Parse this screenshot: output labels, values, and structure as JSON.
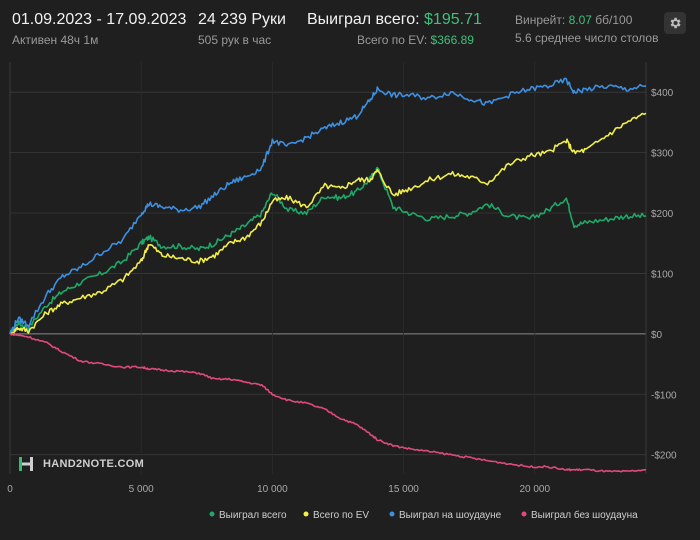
{
  "header": {
    "date_range": "01.09.2023 - 17.09.2023",
    "active": "Активен 48ч 1м",
    "hands": "24 239 Руки",
    "hands_per_hour": "505 рук в час",
    "won_label": "Выиграл всего:",
    "won_value": "$195.71",
    "ev_label": "Всего по EV:",
    "ev_value": "$366.89",
    "winrate_label": "Винрейт:",
    "winrate_value": "8.07",
    "winrate_unit": "бб/100",
    "tables": "5.6 среднее число столов",
    "settings_icon": "gear-icon"
  },
  "watermark": {
    "text": "HAND2NOTE.COM",
    "icon": "h2n-logo-icon"
  },
  "colors": {
    "background": "#1f1f1f",
    "won": "#1fa868",
    "ev": "#f2ef4a",
    "showdown": "#3d8fe0",
    "non_showdown": "#e04a7a",
    "grid": "#3a3a3a",
    "zero": "#8a8a8a"
  },
  "chart_data": {
    "type": "line",
    "xlim": [
      0,
      24239
    ],
    "ylim": [
      -232,
      450
    ],
    "x_ticks": [
      0,
      5000,
      10000,
      15000,
      20000
    ],
    "x_tick_labels": [
      "0",
      "5 000",
      "10 000",
      "15 000",
      "20 000"
    ],
    "y_ticks": [
      400,
      300,
      200,
      100,
      0,
      -100,
      -200
    ],
    "y_tick_labels": [
      "$400",
      "$300",
      "$200",
      "$100",
      "$0",
      "-$100",
      "-$200"
    ],
    "grid": true,
    "legend_position": "bottom",
    "series": [
      {
        "name": "Выиграл всего",
        "color": "#1fa868",
        "x": [
          0,
          300,
          700,
          1400,
          2000,
          2700,
          3500,
          4300,
          5000,
          5300,
          5800,
          6500,
          7200,
          7800,
          8400,
          9000,
          9600,
          10000,
          10600,
          11300,
          12000,
          12600,
          13200,
          13700,
          14000,
          14600,
          15200,
          16000,
          16800,
          17500,
          18200,
          19000,
          19800,
          20500,
          21200,
          21500,
          22000,
          22800,
          23500,
          24239
        ],
        "y": [
          0,
          18,
          10,
          48,
          70,
          85,
          100,
          120,
          150,
          160,
          145,
          145,
          140,
          150,
          165,
          180,
          200,
          235,
          205,
          200,
          228,
          225,
          235,
          255,
          275,
          210,
          200,
          190,
          195,
          200,
          215,
          195,
          190,
          205,
          225,
          180,
          185,
          190,
          195,
          195
        ]
      },
      {
        "name": "Всего по EV",
        "color": "#f2ef4a",
        "x": [
          0,
          300,
          700,
          1400,
          2000,
          2700,
          3500,
          4300,
          5000,
          5300,
          5800,
          6500,
          7200,
          7800,
          8400,
          9000,
          9600,
          10000,
          10600,
          11300,
          12000,
          12600,
          13200,
          13700,
          14000,
          14600,
          15200,
          16000,
          16800,
          17500,
          18200,
          19000,
          19800,
          20500,
          21200,
          21500,
          22000,
          22800,
          23500,
          24239
        ],
        "y": [
          0,
          10,
          5,
          35,
          50,
          60,
          70,
          90,
          120,
          150,
          130,
          125,
          120,
          130,
          150,
          160,
          185,
          220,
          225,
          210,
          245,
          240,
          255,
          255,
          270,
          230,
          240,
          255,
          265,
          260,
          250,
          280,
          295,
          300,
          320,
          300,
          305,
          330,
          350,
          365
        ]
      },
      {
        "name": "Выиграл на шоудауне",
        "color": "#3d8fe0",
        "x": [
          0,
          300,
          700,
          1400,
          2000,
          2700,
          3500,
          4300,
          5000,
          5300,
          5800,
          6500,
          7200,
          7800,
          8400,
          9000,
          9600,
          10000,
          10600,
          11300,
          12000,
          12600,
          13200,
          13700,
          14000,
          14600,
          15200,
          16000,
          16800,
          17500,
          18200,
          19000,
          19800,
          20500,
          21200,
          21500,
          22000,
          22800,
          23500,
          24239
        ],
        "y": [
          0,
          25,
          15,
          65,
          95,
          110,
          135,
          155,
          200,
          215,
          210,
          205,
          210,
          230,
          250,
          260,
          275,
          320,
          310,
          325,
          340,
          350,
          360,
          385,
          405,
          395,
          395,
          390,
          400,
          390,
          380,
          395,
          405,
          410,
          420,
          400,
          405,
          410,
          405,
          410
        ]
      },
      {
        "name": "Выиграл без шоудауна",
        "color": "#e04a7a",
        "x": [
          0,
          300,
          700,
          1400,
          2000,
          2700,
          3500,
          4300,
          5000,
          5300,
          5800,
          6500,
          7200,
          7800,
          8400,
          9000,
          9600,
          10000,
          10600,
          11300,
          12000,
          12600,
          13200,
          13700,
          14000,
          14600,
          15200,
          16000,
          16800,
          17500,
          18200,
          19000,
          19800,
          20500,
          21200,
          21500,
          22000,
          22800,
          23500,
          24239
        ],
        "y": [
          0,
          -2,
          -5,
          -15,
          -30,
          -45,
          -50,
          -55,
          -55,
          -58,
          -60,
          -62,
          -65,
          -75,
          -75,
          -80,
          -85,
          -100,
          -110,
          -115,
          -125,
          -140,
          -150,
          -165,
          -175,
          -185,
          -190,
          -195,
          -200,
          -205,
          -210,
          -215,
          -220,
          -220,
          -225,
          -225,
          -225,
          -228,
          -228,
          -225
        ]
      }
    ]
  }
}
